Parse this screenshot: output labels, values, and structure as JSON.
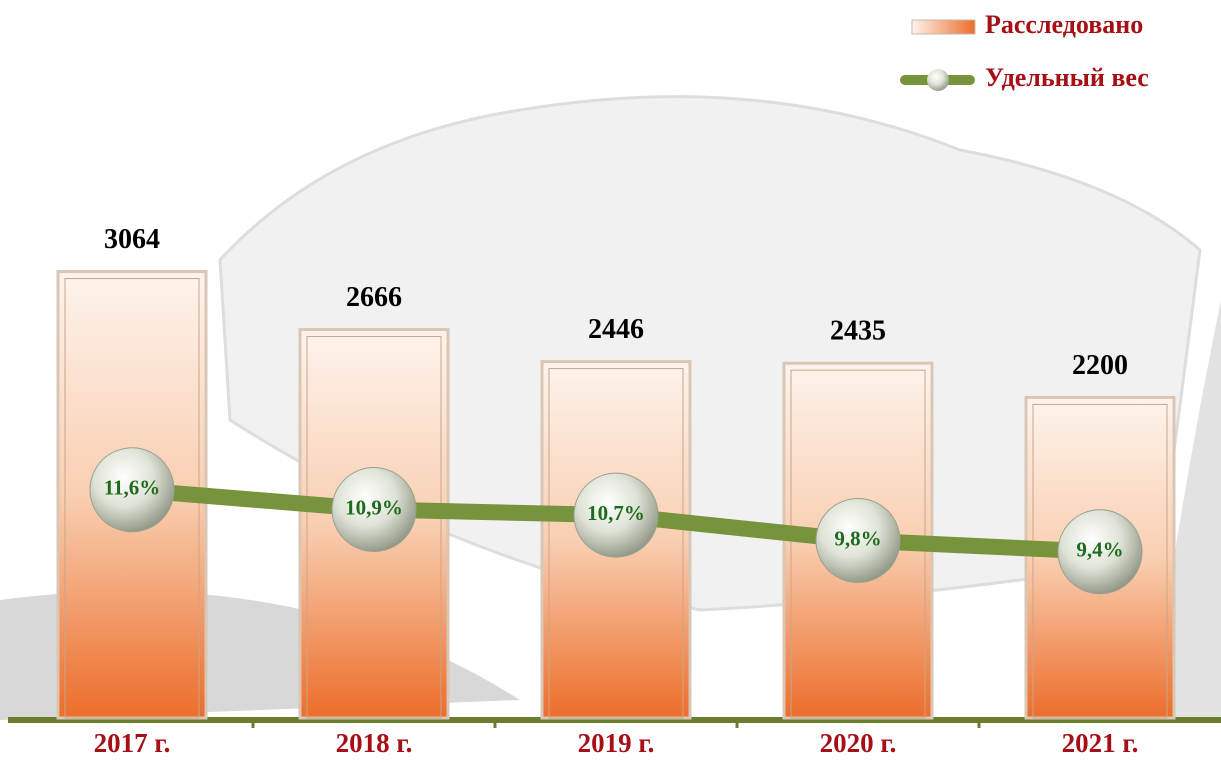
{
  "chart_data": {
    "type": "bar-line",
    "categories": [
      "2017 г.",
      "2018 г.",
      "2019 г.",
      "2020 г.",
      "2021 г."
    ],
    "series": [
      {
        "name": "Расследовано",
        "type": "bar",
        "color": "#ec6d2a",
        "values": [
          3064,
          2666,
          2446,
          2435,
          2200
        ]
      },
      {
        "name": "Удельный вес",
        "type": "line",
        "axis": "y2",
        "color": "#77933c",
        "values": [
          11.6,
          10.9,
          10.7,
          9.8,
          9.4
        ],
        "value_labels": [
          "11,6%",
          "10,9%",
          "10,7%",
          "9,8%",
          "9,4%"
        ]
      }
    ],
    "ylim": [
      0,
      3500
    ],
    "y2lim": [
      3.5,
      21.6
    ],
    "legend": "top-right"
  }
}
